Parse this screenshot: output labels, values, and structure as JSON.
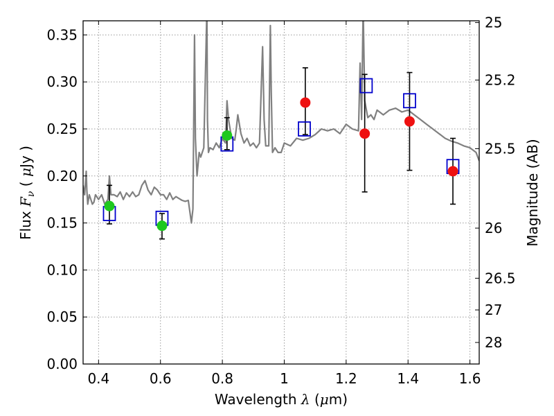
{
  "chart_data": {
    "type": "scatter",
    "title": "",
    "xlabel": "Wavelength",
    "xlabel_math": "λ",
    "xlabel_unit_open": "(",
    "xlabel_unit_math": "μ",
    "xlabel_unit": "m)",
    "ylabel": "Flux",
    "ylabel_math": "F",
    "ylabel_sub": "ν",
    "ylabel_unit_open": "(",
    "ylabel_unit_math": "μ",
    "ylabel_unit": "Jy )",
    "y2label": "Magnitude (AB)",
    "xlim": [
      0.35,
      1.63
    ],
    "ylim": [
      0.0,
      0.365
    ],
    "grid": true,
    "x_ticks": [
      0.4,
      0.6,
      0.8,
      1.0,
      1.2,
      1.4,
      1.6
    ],
    "x_tick_labels": [
      "0.4",
      "0.6",
      "0.8",
      "1",
      "1.2",
      "1.4",
      "1.6"
    ],
    "y_ticks": [
      0.0,
      0.05,
      0.1,
      0.15,
      0.2,
      0.25,
      0.3,
      0.35
    ],
    "y_tick_labels": [
      "0.00",
      "0.05",
      "0.10",
      "0.15",
      "0.20",
      "0.25",
      "0.30",
      "0.35"
    ],
    "y2_ticks": [
      {
        "flux": 0.3631,
        "label": "25"
      },
      {
        "flux": 0.302,
        "label": "25.2"
      },
      {
        "flux": 0.229,
        "label": "25.5"
      },
      {
        "flux": 0.1445,
        "label": "26"
      },
      {
        "flux": 0.0912,
        "label": "26.5"
      },
      {
        "flux": 0.0575,
        "label": "27"
      },
      {
        "flux": 0.0229,
        "label": "28"
      }
    ],
    "colors": {
      "spectrum": "#808080",
      "green_points": "#1ec81e",
      "red_points": "#ee1111",
      "model_squares": "#0000cc",
      "errorbar": "#000000",
      "grid": "#9a9a9a"
    },
    "series": [
      {
        "kind": "spectrum",
        "x": [
          0.35,
          0.355,
          0.36,
          0.362,
          0.365,
          0.37,
          0.375,
          0.38,
          0.385,
          0.39,
          0.4,
          0.41,
          0.42,
          0.43,
          0.435,
          0.44,
          0.45,
          0.46,
          0.47,
          0.48,
          0.49,
          0.5,
          0.51,
          0.52,
          0.53,
          0.54,
          0.55,
          0.56,
          0.57,
          0.58,
          0.59,
          0.6,
          0.61,
          0.62,
          0.63,
          0.64,
          0.65,
          0.66,
          0.67,
          0.68,
          0.69,
          0.7,
          0.705,
          0.71,
          0.713,
          0.718,
          0.725,
          0.73,
          0.74,
          0.75,
          0.752,
          0.755,
          0.76,
          0.77,
          0.78,
          0.79,
          0.8,
          0.81,
          0.815,
          0.82,
          0.83,
          0.84,
          0.845,
          0.85,
          0.86,
          0.87,
          0.88,
          0.89,
          0.9,
          0.91,
          0.92,
          0.93,
          0.935,
          0.94,
          0.95,
          0.955,
          0.958,
          0.962,
          0.97,
          0.98,
          0.99,
          1.0,
          1.02,
          1.04,
          1.06,
          1.08,
          1.1,
          1.12,
          1.14,
          1.16,
          1.18,
          1.2,
          1.22,
          1.24,
          1.245,
          1.25,
          1.255,
          1.26,
          1.27,
          1.28,
          1.29,
          1.3,
          1.32,
          1.34,
          1.36,
          1.38,
          1.4,
          1.42,
          1.44,
          1.46,
          1.48,
          1.5,
          1.52,
          1.54,
          1.56,
          1.58,
          1.6,
          1.62,
          1.63
        ],
        "y": [
          0.19,
          0.18,
          0.205,
          0.185,
          0.17,
          0.18,
          0.175,
          0.17,
          0.172,
          0.18,
          0.175,
          0.18,
          0.17,
          0.175,
          0.2,
          0.18,
          0.18,
          0.178,
          0.183,
          0.175,
          0.182,
          0.178,
          0.183,
          0.178,
          0.18,
          0.19,
          0.195,
          0.185,
          0.18,
          0.188,
          0.185,
          0.18,
          0.18,
          0.175,
          0.182,
          0.175,
          0.178,
          0.176,
          0.174,
          0.173,
          0.174,
          0.15,
          0.165,
          0.35,
          0.24,
          0.2,
          0.225,
          0.22,
          0.23,
          0.38,
          0.26,
          0.225,
          0.23,
          0.228,
          0.235,
          0.23,
          0.24,
          0.235,
          0.28,
          0.26,
          0.24,
          0.238,
          0.25,
          0.265,
          0.245,
          0.235,
          0.24,
          0.232,
          0.235,
          0.23,
          0.235,
          0.3375,
          0.26,
          0.232,
          0.232,
          0.36,
          0.29,
          0.225,
          0.23,
          0.225,
          0.225,
          0.235,
          0.232,
          0.24,
          0.238,
          0.24,
          0.244,
          0.25,
          0.248,
          0.25,
          0.245,
          0.255,
          0.25,
          0.248,
          0.32,
          0.26,
          0.38,
          0.28,
          0.262,
          0.265,
          0.26,
          0.27,
          0.265,
          0.27,
          0.272,
          0.268,
          0.27,
          0.265,
          0.26,
          0.255,
          0.25,
          0.245,
          0.24,
          0.237,
          0.235,
          0.232,
          0.23,
          0.225,
          0.216
        ]
      },
      {
        "kind": "observed-green",
        "x": [
          0.435,
          0.605,
          0.815
        ],
        "y": [
          0.168,
          0.147,
          0.243
        ],
        "yerr_low": [
          0.149,
          0.133,
          0.228
        ],
        "yerr_high": [
          0.19,
          0.16,
          0.262
        ]
      },
      {
        "kind": "observed-red",
        "x": [
          1.068,
          1.26,
          1.405,
          1.545
        ],
        "y": [
          0.278,
          0.245,
          0.258,
          0.205
        ],
        "yerr_low": [
          0.244,
          0.183,
          0.206,
          0.17
        ],
        "yerr_high": [
          0.315,
          0.308,
          0.31,
          0.24
        ]
      },
      {
        "kind": "model-squares",
        "x": [
          0.435,
          0.605,
          0.815,
          1.065,
          1.265,
          1.405,
          1.545
        ],
        "y": [
          0.16,
          0.155,
          0.234,
          0.25,
          0.296,
          0.28,
          0.21
        ]
      }
    ]
  }
}
